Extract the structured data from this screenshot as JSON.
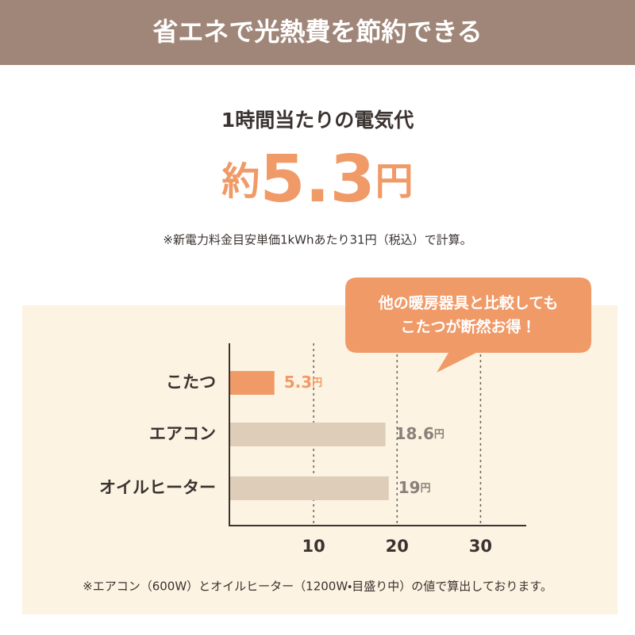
{
  "header": {
    "title": "省エネで光熱費を節約できる"
  },
  "summary": {
    "heading": "1時間当たりの電気代",
    "prefix": "約",
    "amount": 5.3,
    "unit": "円",
    "note": "※新電力料金目安単価1kWhあたり31円（税込）で計算。"
  },
  "callout": {
    "lines": [
      "他の暖房器具と比較しても",
      "こたつが断然お得！"
    ]
  },
  "chart_data": {
    "type": "bar",
    "orientation": "horizontal",
    "categories": [
      "こたつ",
      "エアコン",
      "オイルヒーター"
    ],
    "values": [
      5.3,
      18.6,
      19
    ],
    "unit": "円",
    "colors": [
      "#f09a68",
      "#ddcdb9",
      "#ddcdb9"
    ],
    "label_colors": [
      "#f09a68",
      "#8a817a",
      "#8a817a"
    ],
    "xlim": [
      0,
      35
    ],
    "xticks": [
      10,
      20,
      30
    ],
    "grid": true
  },
  "footnote": "※エアコン（600W）とオイルヒーター（1200W・目盛り中）の値で算出しております。"
}
